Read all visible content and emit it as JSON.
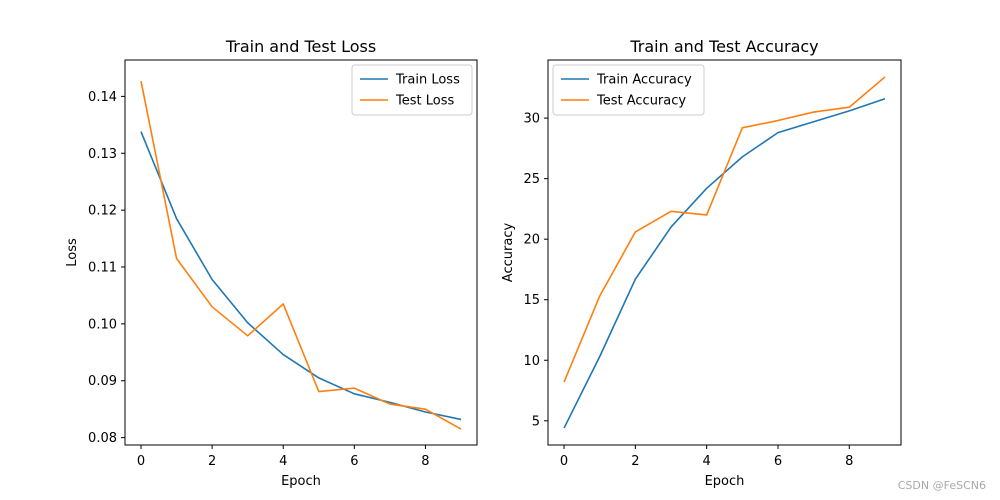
{
  "chart_data": [
    {
      "type": "line",
      "title": "Train and Test Loss",
      "xlabel": "Epoch",
      "ylabel": "Loss",
      "x": [
        0,
        1,
        2,
        3,
        4,
        5,
        6,
        7,
        8,
        9
      ],
      "xlim": [
        -0.45,
        9.45
      ],
      "ylim": [
        0.0787,
        0.1464
      ],
      "xticks": [
        0,
        2,
        4,
        6,
        8
      ],
      "yticks": [
        0.08,
        0.09,
        0.1,
        0.11,
        0.12,
        0.13,
        0.14
      ],
      "ytick_labels": [
        "0.08",
        "0.09",
        "0.10",
        "0.11",
        "0.12",
        "0.13",
        "0.14"
      ],
      "legend_position": "top-right",
      "series": [
        {
          "name": "Train Loss",
          "color": "#1f77b4",
          "values": [
            0.1338,
            0.1185,
            0.1078,
            0.1002,
            0.0946,
            0.0905,
            0.0877,
            0.0862,
            0.0845,
            0.0832
          ]
        },
        {
          "name": "Test Loss",
          "color": "#ff7f0e",
          "values": [
            0.1427,
            0.1115,
            0.103,
            0.0979,
            0.1035,
            0.0881,
            0.0887,
            0.0859,
            0.085,
            0.0815
          ]
        }
      ]
    },
    {
      "type": "line",
      "title": "Train and Test Accuracy",
      "xlabel": "Epoch",
      "ylabel": "Accuracy",
      "x": [
        0,
        1,
        2,
        3,
        4,
        5,
        6,
        7,
        8,
        9
      ],
      "xlim": [
        -0.45,
        9.45
      ],
      "ylim": [
        3.0,
        34.8
      ],
      "xticks": [
        0,
        2,
        4,
        6,
        8
      ],
      "yticks": [
        5,
        10,
        15,
        20,
        25,
        30
      ],
      "ytick_labels": [
        "5",
        "10",
        "15",
        "20",
        "25",
        "30"
      ],
      "legend_position": "top-left",
      "series": [
        {
          "name": "Train Accuracy",
          "color": "#1f77b4",
          "values": [
            4.4,
            10.3,
            16.7,
            21.0,
            24.2,
            26.8,
            28.8,
            29.7,
            30.6,
            31.6
          ]
        },
        {
          "name": "Test Accuracy",
          "color": "#ff7f0e",
          "values": [
            8.2,
            15.3,
            20.6,
            22.3,
            22.0,
            29.2,
            29.8,
            30.5,
            30.9,
            33.4
          ]
        }
      ]
    }
  ],
  "watermark": "CSDN @FeSCN6"
}
